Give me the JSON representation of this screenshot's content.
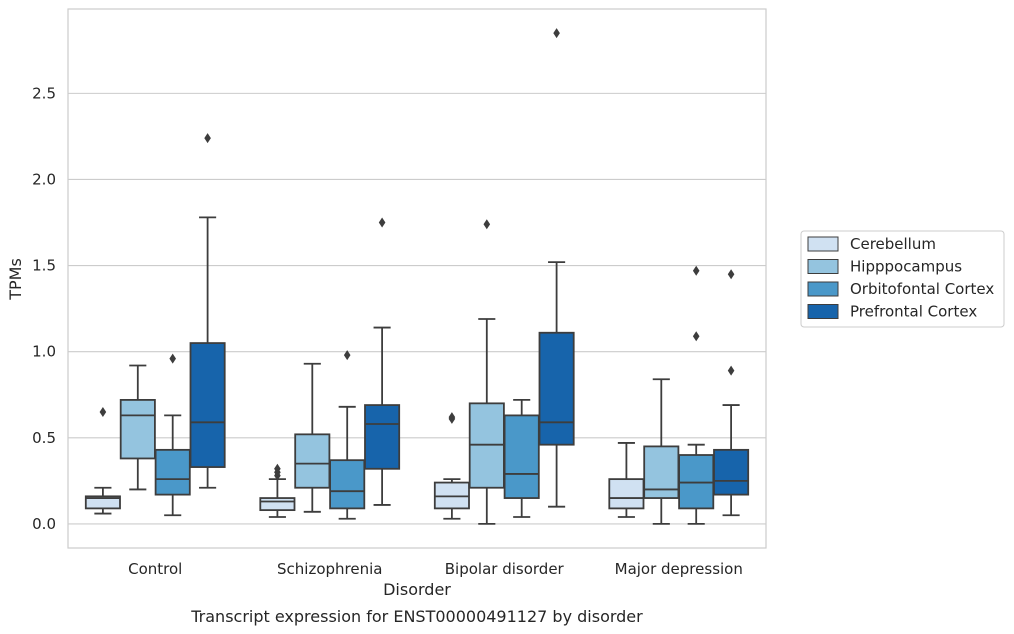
{
  "chart_data": {
    "type": "box",
    "caption": "Transcript expression for ENST00000491127 by disorder",
    "xlabel": "Disorder",
    "ylabel": "TPMs",
    "ylim": [
      -0.14,
      2.99
    ],
    "yticks": [
      0.0,
      0.5,
      1.0,
      1.5,
      2.0,
      2.5
    ],
    "ytick_labels": [
      "0.0",
      "0.5",
      "1.0",
      "1.5",
      "2.0",
      "2.5"
    ],
    "grid": "horizontal",
    "legend_position": "center-right",
    "categories": [
      "Control",
      "Schizophrenia",
      "Bipolar disorder",
      "Major depression"
    ],
    "series": [
      {
        "name": "Cerebellum",
        "color": "#d0e1f2",
        "boxes": [
          {
            "whislo": 0.06,
            "q1": 0.09,
            "median": 0.15,
            "q3": 0.16,
            "whishi": 0.21,
            "fliers": [
              0.65
            ]
          },
          {
            "whislo": 0.04,
            "q1": 0.08,
            "median": 0.13,
            "q3": 0.15,
            "whishi": 0.26,
            "fliers": [
              0.28,
              0.3,
              0.32
            ]
          },
          {
            "whislo": 0.03,
            "q1": 0.09,
            "median": 0.16,
            "q3": 0.24,
            "whishi": 0.26,
            "fliers": [
              0.61,
              0.62
            ]
          },
          {
            "whislo": 0.04,
            "q1": 0.09,
            "median": 0.15,
            "q3": 0.26,
            "whishi": 0.47,
            "fliers": []
          }
        ]
      },
      {
        "name": "Hipppocampus",
        "color": "#94c4df",
        "boxes": [
          {
            "whislo": 0.2,
            "q1": 0.38,
            "median": 0.63,
            "q3": 0.72,
            "whishi": 0.92,
            "fliers": []
          },
          {
            "whislo": 0.07,
            "q1": 0.21,
            "median": 0.35,
            "q3": 0.52,
            "whishi": 0.93,
            "fliers": []
          },
          {
            "whislo": 0.0,
            "q1": 0.21,
            "median": 0.46,
            "q3": 0.7,
            "whishi": 1.19,
            "fliers": [
              1.74
            ]
          },
          {
            "whislo": 0.0,
            "q1": 0.15,
            "median": 0.2,
            "q3": 0.45,
            "whishi": 0.84,
            "fliers": []
          }
        ]
      },
      {
        "name": "Orbitofontal Cortex",
        "color": "#4a98c9",
        "boxes": [
          {
            "whislo": 0.05,
            "q1": 0.17,
            "median": 0.26,
            "q3": 0.43,
            "whishi": 0.63,
            "fliers": [
              0.96
            ]
          },
          {
            "whislo": 0.03,
            "q1": 0.09,
            "median": 0.19,
            "q3": 0.37,
            "whishi": 0.68,
            "fliers": [
              0.98
            ]
          },
          {
            "whislo": 0.04,
            "q1": 0.15,
            "median": 0.29,
            "q3": 0.63,
            "whishi": 0.72,
            "fliers": []
          },
          {
            "whislo": 0.0,
            "q1": 0.09,
            "median": 0.24,
            "q3": 0.4,
            "whishi": 0.46,
            "fliers": [
              1.09,
              1.47
            ]
          }
        ]
      },
      {
        "name": "Prefrontal Cortex",
        "color": "#1764ab",
        "boxes": [
          {
            "whislo": 0.21,
            "q1": 0.33,
            "median": 0.59,
            "q3": 1.05,
            "whishi": 1.78,
            "fliers": [
              2.24
            ]
          },
          {
            "whislo": 0.11,
            "q1": 0.32,
            "median": 0.58,
            "q3": 0.69,
            "whishi": 1.14,
            "fliers": [
              1.75
            ]
          },
          {
            "whislo": 0.1,
            "q1": 0.46,
            "median": 0.59,
            "q3": 1.11,
            "whishi": 1.52,
            "fliers": [
              2.85
            ]
          },
          {
            "whislo": 0.05,
            "q1": 0.17,
            "median": 0.25,
            "q3": 0.43,
            "whishi": 0.69,
            "fliers": [
              0.89,
              1.45
            ]
          }
        ]
      }
    ]
  }
}
